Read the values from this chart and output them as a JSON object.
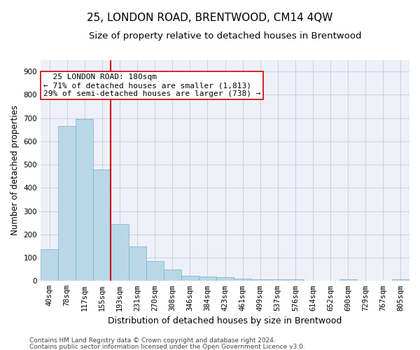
{
  "title": "25, LONDON ROAD, BRENTWOOD, CM14 4QW",
  "subtitle": "Size of property relative to detached houses in Brentwood",
  "xlabel": "Distribution of detached houses by size in Brentwood",
  "ylabel": "Number of detached properties",
  "footer_line1": "Contains HM Land Registry data © Crown copyright and database right 2024.",
  "footer_line2": "Contains public sector information licensed under the Open Government Licence v3.0.",
  "categories": [
    "40sqm",
    "78sqm",
    "117sqm",
    "155sqm",
    "193sqm",
    "231sqm",
    "270sqm",
    "308sqm",
    "346sqm",
    "384sqm",
    "423sqm",
    "461sqm",
    "499sqm",
    "537sqm",
    "576sqm",
    "614sqm",
    "652sqm",
    "690sqm",
    "729sqm",
    "767sqm",
    "805sqm"
  ],
  "values": [
    137,
    665,
    695,
    480,
    246,
    148,
    85,
    48,
    22,
    18,
    15,
    10,
    8,
    8,
    7,
    2,
    0,
    8,
    0,
    0,
    8
  ],
  "bar_color": "#b8d8e8",
  "bar_edgecolor": "#7ab0cc",
  "vline_color": "#cc0000",
  "vline_x": 3.5,
  "annotation_line1": "  25 LONDON ROAD: 180sqm",
  "annotation_line2": "← 71% of detached houses are smaller (1,813)",
  "annotation_line3": "29% of semi-detached houses are larger (738) →",
  "annotation_box_facecolor": "#ffffff",
  "annotation_box_edgecolor": "#cc0000",
  "ylim": [
    0,
    950
  ],
  "yticks": [
    0,
    100,
    200,
    300,
    400,
    500,
    600,
    700,
    800,
    900
  ],
  "bg_color": "#eef0f8",
  "grid_color": "#c8cad8",
  "title_fontsize": 11,
  "subtitle_fontsize": 9.5,
  "xlabel_fontsize": 9,
  "ylabel_fontsize": 8.5,
  "tick_fontsize": 7.5,
  "annotation_fontsize": 8,
  "footer_fontsize": 6.5
}
